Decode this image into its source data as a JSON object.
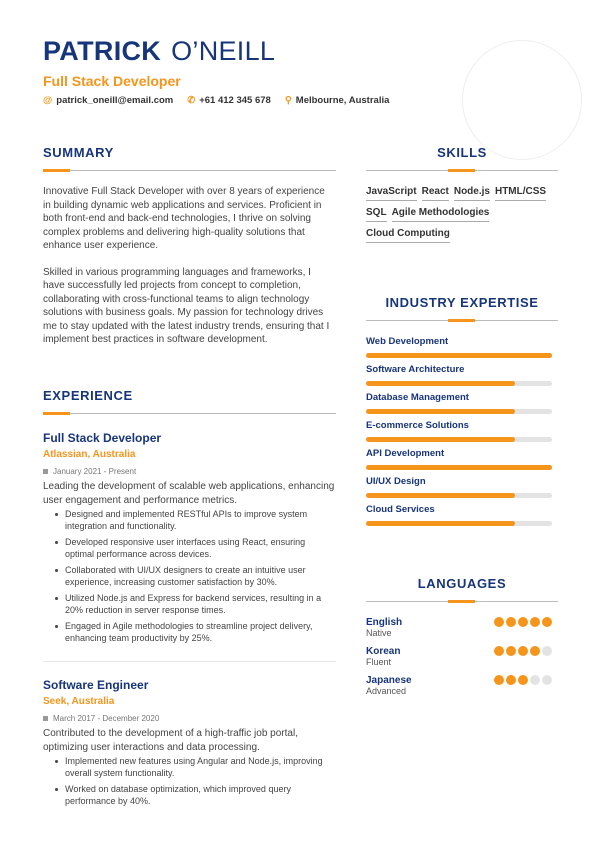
{
  "header": {
    "first_name": "PATRICK",
    "last_name": "O’NEILL",
    "title": "Full Stack Developer",
    "email": "patrick_oneill@email.com",
    "phone": "+61 412 345 678",
    "location": "Melbourne, Australia"
  },
  "summary": {
    "heading": "SUMMARY",
    "paragraphs": [
      "Innovative Full Stack Developer with over 8 years of experience in building dynamic web applications and services. Proficient in both front-end and back-end technologies, I thrive on solving complex problems and delivering high-quality solutions that enhance user experience.",
      "Skilled in various programming languages and frameworks, I have successfully led projects from concept to completion, collaborating with cross-functional teams to align technology solutions with business goals. My passion for technology drives me to stay updated with the latest industry trends, ensuring that I implement best practices in software development."
    ]
  },
  "experience": {
    "heading": "EXPERIENCE",
    "jobs": [
      {
        "title": "Full Stack Developer",
        "company": "Atlassian, Australia",
        "dates": "January 2021 - Present",
        "description": "Leading the development of scalable web applications, enhancing user engagement and performance metrics.",
        "bullets": [
          "Designed and implemented RESTful APIs to improve system integration and functionality.",
          "Developed responsive user interfaces using React, ensuring optimal performance across devices.",
          "Collaborated with UI/UX designers to create an intuitive user experience, increasing customer satisfaction by 30%.",
          "Utilized Node.js and Express for backend services, resulting in a 20% reduction in server response times.",
          "Engaged in Agile methodologies to streamline project delivery, enhancing team productivity by 25%."
        ]
      },
      {
        "title": "Software Engineer",
        "company": "Seek, Australia",
        "dates": "March 2017 - December 2020",
        "description": "Contributed to the development of a high-traffic job portal, optimizing user interactions and data processing.",
        "bullets": [
          "Implemented new features using Angular and Node.js, improving overall system functionality.",
          "Worked on database optimization, which improved query performance by 40%."
        ]
      }
    ]
  },
  "skills": {
    "heading": "SKILLS",
    "items": [
      "JavaScript",
      "React",
      "Node.js",
      "HTML/CSS",
      "SQL",
      "Agile Methodologies",
      "Cloud Computing"
    ]
  },
  "expertise": {
    "heading": "INDUSTRY EXPERTISE",
    "items": [
      {
        "label": "Web Development",
        "level": 100
      },
      {
        "label": "Software Architecture",
        "level": 80
      },
      {
        "label": "Database Management",
        "level": 80
      },
      {
        "label": "E-commerce Solutions",
        "level": 80
      },
      {
        "label": "API Development",
        "level": 100
      },
      {
        "label": "UI/UX Design",
        "level": 80
      },
      {
        "label": "Cloud Services",
        "level": 80
      }
    ]
  },
  "languages": {
    "heading": "LANGUAGES",
    "items": [
      {
        "name": "English",
        "level_label": "Native",
        "rating": 5
      },
      {
        "name": "Korean",
        "level_label": "Fluent",
        "rating": 4
      },
      {
        "name": "Japanese",
        "level_label": "Advanced",
        "rating": 3
      }
    ]
  },
  "colors": {
    "primary": "#17357a",
    "accent": "#f5951b"
  }
}
